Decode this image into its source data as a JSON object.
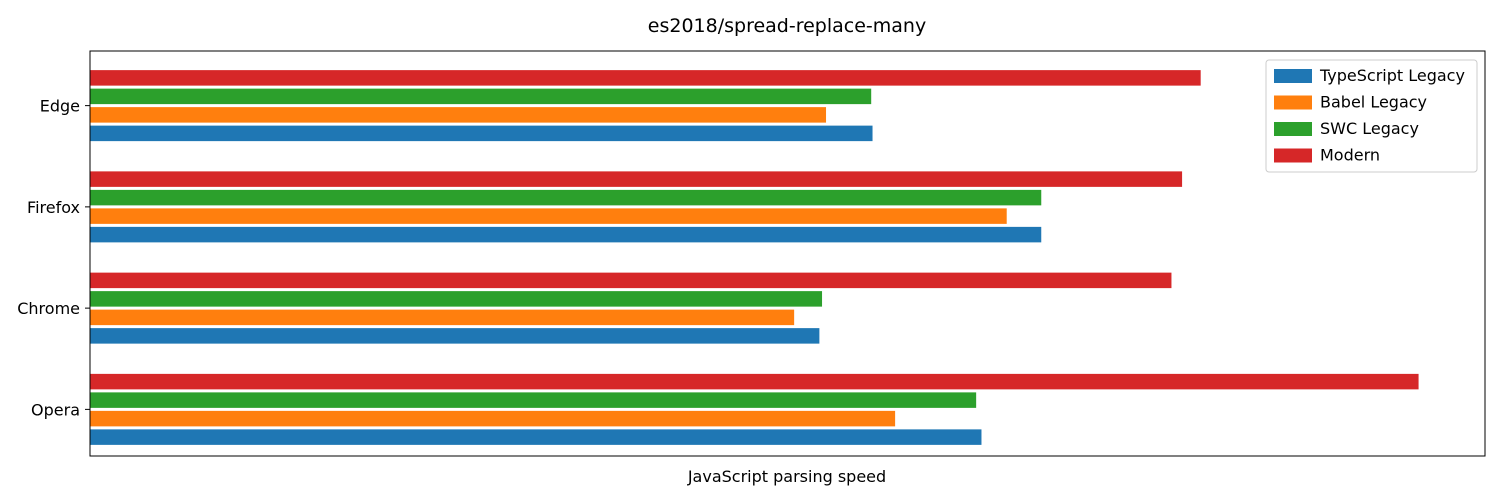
{
  "chart_data": {
    "type": "bar",
    "orientation": "horizontal",
    "title": "es2018/spread-replace-many",
    "xlabel": "JavaScript parsing speed",
    "ylabel": "",
    "categories": [
      "Edge",
      "Firefox",
      "Chrome",
      "Opera"
    ],
    "xlim": [
      0,
      1.05
    ],
    "x_ticks_shown": false,
    "grid": false,
    "legend_position": "top-right",
    "series": [
      {
        "name": "TypeScript Legacy",
        "color": "#1f77b4",
        "values": [
          0.589,
          0.716,
          0.549,
          0.671
        ]
      },
      {
        "name": "Babel Legacy",
        "color": "#ff7f0e",
        "values": [
          0.554,
          0.69,
          0.53,
          0.606
        ]
      },
      {
        "name": "SWC Legacy",
        "color": "#2ca02c",
        "values": [
          0.588,
          0.716,
          0.551,
          0.667
        ]
      },
      {
        "name": "Modern",
        "color": "#d62728",
        "values": [
          0.836,
          0.822,
          0.814,
          1.0
        ]
      }
    ]
  }
}
